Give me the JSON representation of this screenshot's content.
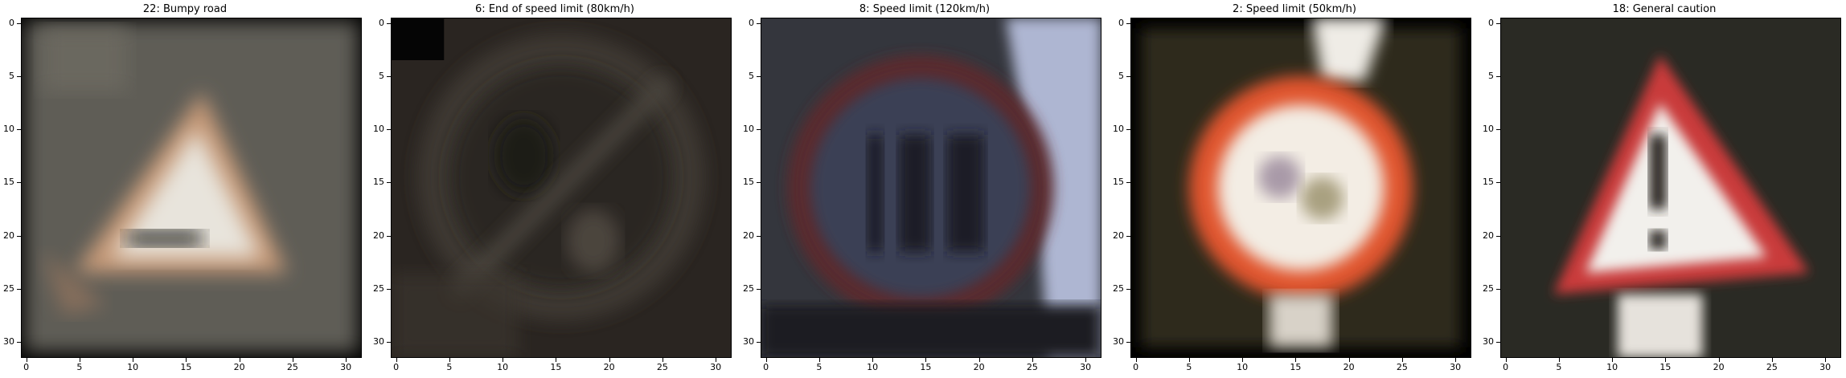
{
  "axis": {
    "x_ticks": [
      "0",
      "5",
      "10",
      "15",
      "20",
      "25",
      "30"
    ],
    "y_ticks": [
      "0",
      "5",
      "10",
      "15",
      "20",
      "25",
      "30"
    ]
  },
  "panels": [
    {
      "title": "22: Bumpy road",
      "depicts": "bumpy-road-sign",
      "background": "#5e5c55"
    },
    {
      "title": "6: End of speed limit (80km/h)",
      "depicts": "end-speed-limit-80-sign",
      "background": "#2b2622"
    },
    {
      "title": "8: Speed limit (120km/h)",
      "depicts": "speed-limit-120-sign",
      "background": "#34363c"
    },
    {
      "title": "2: Speed limit (50km/h)",
      "depicts": "speed-limit-50-sign",
      "background": "#2e2a1e"
    },
    {
      "title": "18: General caution",
      "depicts": "general-caution-sign",
      "background": "#2a2a24"
    }
  ]
}
